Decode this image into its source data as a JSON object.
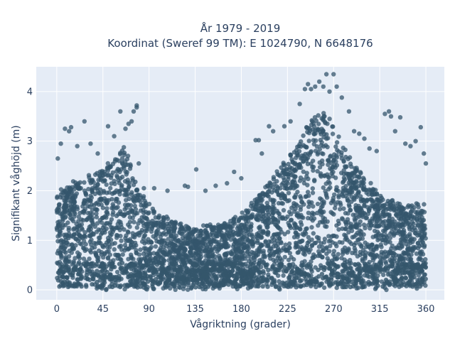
{
  "chart_data": {
    "type": "scatter",
    "title_lines": [
      "År 1979 - 2019",
      "Koordinat (Sweref 99 TM): E 1024790, N 6648176"
    ],
    "xlabel": "Vågriktning (grader)",
    "ylabel": "Signifikant våghöjd (m)",
    "xlim": [
      -20,
      378
    ],
    "ylim": [
      -0.2,
      4.5
    ],
    "xticks": [
      0,
      45,
      90,
      135,
      180,
      225,
      270,
      315,
      360
    ],
    "yticks": [
      0,
      1,
      2,
      3,
      4
    ],
    "grid": true,
    "marker_color": "#34566c",
    "background_color": "#e5ecf6",
    "grid_color": "#ffffff",
    "envelope": {
      "direction": [
        0,
        5,
        15,
        25,
        35,
        45,
        55,
        62,
        68,
        72,
        75,
        80,
        90,
        100,
        110,
        120,
        135,
        150,
        165,
        180,
        190,
        200,
        210,
        220,
        230,
        240,
        248,
        255,
        260,
        265,
        270,
        275,
        282,
        290,
        300,
        310,
        320,
        330,
        340,
        350,
        360
      ],
      "dense_upper_height": [
        1.9,
        2.0,
        2.1,
        2.2,
        2.3,
        2.45,
        2.6,
        2.75,
        2.85,
        2.6,
        2.3,
        1.95,
        1.7,
        1.5,
        1.4,
        1.3,
        1.25,
        1.3,
        1.35,
        1.5,
        1.7,
        1.95,
        2.25,
        2.55,
        2.9,
        3.2,
        3.45,
        3.55,
        3.5,
        3.45,
        3.3,
        3.1,
        2.8,
        2.5,
        2.2,
        2.0,
        1.85,
        1.75,
        1.7,
        1.7,
        1.75
      ]
    },
    "outliers": [
      {
        "x": 1,
        "y": 2.65
      },
      {
        "x": 4,
        "y": 2.95
      },
      {
        "x": 8,
        "y": 3.25
      },
      {
        "x": 12,
        "y": 3.2
      },
      {
        "x": 14,
        "y": 3.28
      },
      {
        "x": 20,
        "y": 2.9
      },
      {
        "x": 27,
        "y": 3.4
      },
      {
        "x": 33,
        "y": 2.95
      },
      {
        "x": 40,
        "y": 2.75
      },
      {
        "x": 50,
        "y": 3.3
      },
      {
        "x": 56,
        "y": 3.1
      },
      {
        "x": 62,
        "y": 3.6
      },
      {
        "x": 67,
        "y": 3.25
      },
      {
        "x": 70,
        "y": 3.35
      },
      {
        "x": 73,
        "y": 3.4
      },
      {
        "x": 75,
        "y": 3.6
      },
      {
        "x": 78,
        "y": 3.72
      },
      {
        "x": 78,
        "y": 3.68
      },
      {
        "x": 80,
        "y": 2.55
      },
      {
        "x": 85,
        "y": 2.05
      },
      {
        "x": 95,
        "y": 2.05
      },
      {
        "x": 108,
        "y": 2.0
      },
      {
        "x": 125,
        "y": 2.1
      },
      {
        "x": 128,
        "y": 2.08
      },
      {
        "x": 136,
        "y": 2.43
      },
      {
        "x": 145,
        "y": 2.0
      },
      {
        "x": 155,
        "y": 2.1
      },
      {
        "x": 166,
        "y": 2.15
      },
      {
        "x": 173,
        "y": 2.38
      },
      {
        "x": 180,
        "y": 2.25
      },
      {
        "x": 194,
        "y": 3.02
      },
      {
        "x": 197,
        "y": 3.02
      },
      {
        "x": 200,
        "y": 2.75
      },
      {
        "x": 207,
        "y": 3.3
      },
      {
        "x": 211,
        "y": 3.2
      },
      {
        "x": 222,
        "y": 3.3
      },
      {
        "x": 228,
        "y": 3.4
      },
      {
        "x": 237,
        "y": 3.75
      },
      {
        "x": 242,
        "y": 4.05
      },
      {
        "x": 245,
        "y": 4.15
      },
      {
        "x": 248,
        "y": 4.05
      },
      {
        "x": 252,
        "y": 4.1
      },
      {
        "x": 256,
        "y": 4.2
      },
      {
        "x": 260,
        "y": 4.1
      },
      {
        "x": 263,
        "y": 4.35
      },
      {
        "x": 266,
        "y": 4.0
      },
      {
        "x": 270,
        "y": 4.35
      },
      {
        "x": 273,
        "y": 4.1
      },
      {
        "x": 278,
        "y": 3.88
      },
      {
        "x": 285,
        "y": 3.6
      },
      {
        "x": 290,
        "y": 3.2
      },
      {
        "x": 295,
        "y": 3.15
      },
      {
        "x": 300,
        "y": 3.05
      },
      {
        "x": 305,
        "y": 2.85
      },
      {
        "x": 312,
        "y": 2.8
      },
      {
        "x": 320,
        "y": 3.55
      },
      {
        "x": 324,
        "y": 3.6
      },
      {
        "x": 326,
        "y": 3.5
      },
      {
        "x": 330,
        "y": 3.2
      },
      {
        "x": 335,
        "y": 3.48
      },
      {
        "x": 340,
        "y": 2.95
      },
      {
        "x": 345,
        "y": 2.9
      },
      {
        "x": 350,
        "y": 3.0
      },
      {
        "x": 355,
        "y": 3.28
      },
      {
        "x": 358,
        "y": 2.75
      },
      {
        "x": 360,
        "y": 2.55
      }
    ]
  }
}
